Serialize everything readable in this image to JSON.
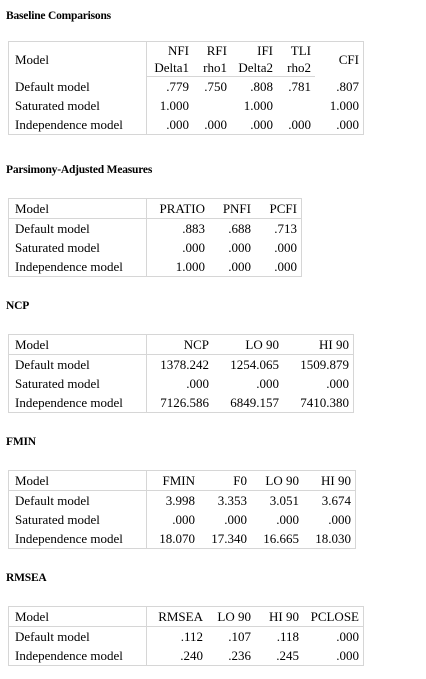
{
  "sections": {
    "baseline": {
      "title": "Baseline Comparisons",
      "header_top": [
        "Model",
        "NFI",
        "RFI",
        "IFI",
        "TLI",
        "CFI"
      ],
      "header_bottom": [
        "Delta1",
        "rho1",
        "Delta2",
        "rho2"
      ],
      "rows": [
        [
          "Default model",
          ".779",
          ".750",
          ".808",
          ".781",
          ".807"
        ],
        [
          "Saturated model",
          "1.000",
          "",
          "1.000",
          "",
          "1.000"
        ],
        [
          "Independence model",
          ".000",
          ".000",
          ".000",
          ".000",
          ".000"
        ]
      ]
    },
    "parsimony": {
      "title": "Parsimony-Adjusted Measures",
      "header": [
        "Model",
        "PRATIO",
        "PNFI",
        "PCFI"
      ],
      "rows": [
        [
          "Default model",
          ".883",
          ".688",
          ".713"
        ],
        [
          "Saturated model",
          ".000",
          ".000",
          ".000"
        ],
        [
          "Independence model",
          "1.000",
          ".000",
          ".000"
        ]
      ]
    },
    "ncp": {
      "title": "NCP",
      "header": [
        "Model",
        "NCP",
        "LO 90",
        "HI 90"
      ],
      "rows": [
        [
          "Default model",
          "1378.242",
          "1254.065",
          "1509.879"
        ],
        [
          "Saturated model",
          ".000",
          ".000",
          ".000"
        ],
        [
          "Independence model",
          "7126.586",
          "6849.157",
          "7410.380"
        ]
      ]
    },
    "fmin": {
      "title": "FMIN",
      "header": [
        "Model",
        "FMIN",
        "F0",
        "LO 90",
        "HI 90"
      ],
      "rows": [
        [
          "Default model",
          "3.998",
          "3.353",
          "3.051",
          "3.674"
        ],
        [
          "Saturated model",
          ".000",
          ".000",
          ".000",
          ".000"
        ],
        [
          "Independence model",
          "18.070",
          "17.340",
          "16.665",
          "18.030"
        ]
      ]
    },
    "rmsea": {
      "title": "RMSEA",
      "header": [
        "Model",
        "RMSEA",
        "LO 90",
        "HI 90",
        "PCLOSE"
      ],
      "rows": [
        [
          "Default model",
          ".112",
          ".107",
          ".118",
          ".000"
        ],
        [
          "Independence model",
          ".240",
          ".236",
          ".245",
          ".000"
        ]
      ]
    }
  }
}
